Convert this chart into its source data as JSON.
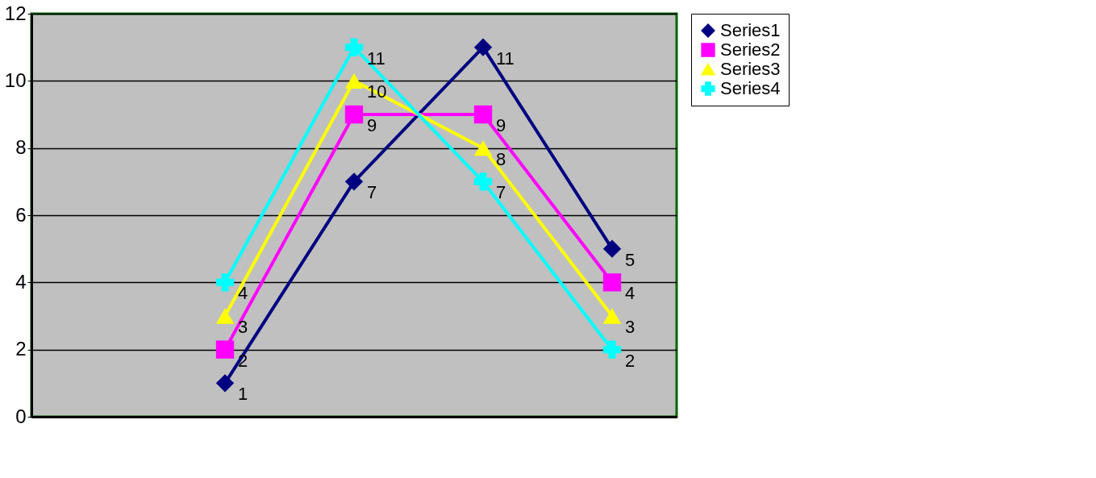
{
  "chart_data": {
    "type": "line",
    "categories": [
      null,
      null,
      null,
      null,
      null
    ],
    "series": [
      {
        "name": "Series1",
        "color": "#000080",
        "marker": "diamond",
        "values": [
          null,
          1,
          7,
          11,
          5
        ]
      },
      {
        "name": "Series2",
        "color": "#ff00ff",
        "marker": "square",
        "values": [
          null,
          2,
          9,
          9,
          4
        ]
      },
      {
        "name": "Series3",
        "color": "#ffff00",
        "marker": "triangle",
        "values": [
          null,
          3,
          10,
          8,
          3
        ]
      },
      {
        "name": "Series4",
        "color": "#00ffff",
        "marker": "cross",
        "values": [
          null,
          4,
          11,
          7,
          2
        ]
      }
    ],
    "ylim": [
      0,
      12
    ],
    "yticks": [
      0,
      2,
      4,
      6,
      8,
      10,
      12
    ],
    "grid": "y",
    "legend": "right",
    "tick_labels": "y",
    "data_labels": true,
    "line_style": "solid"
  }
}
